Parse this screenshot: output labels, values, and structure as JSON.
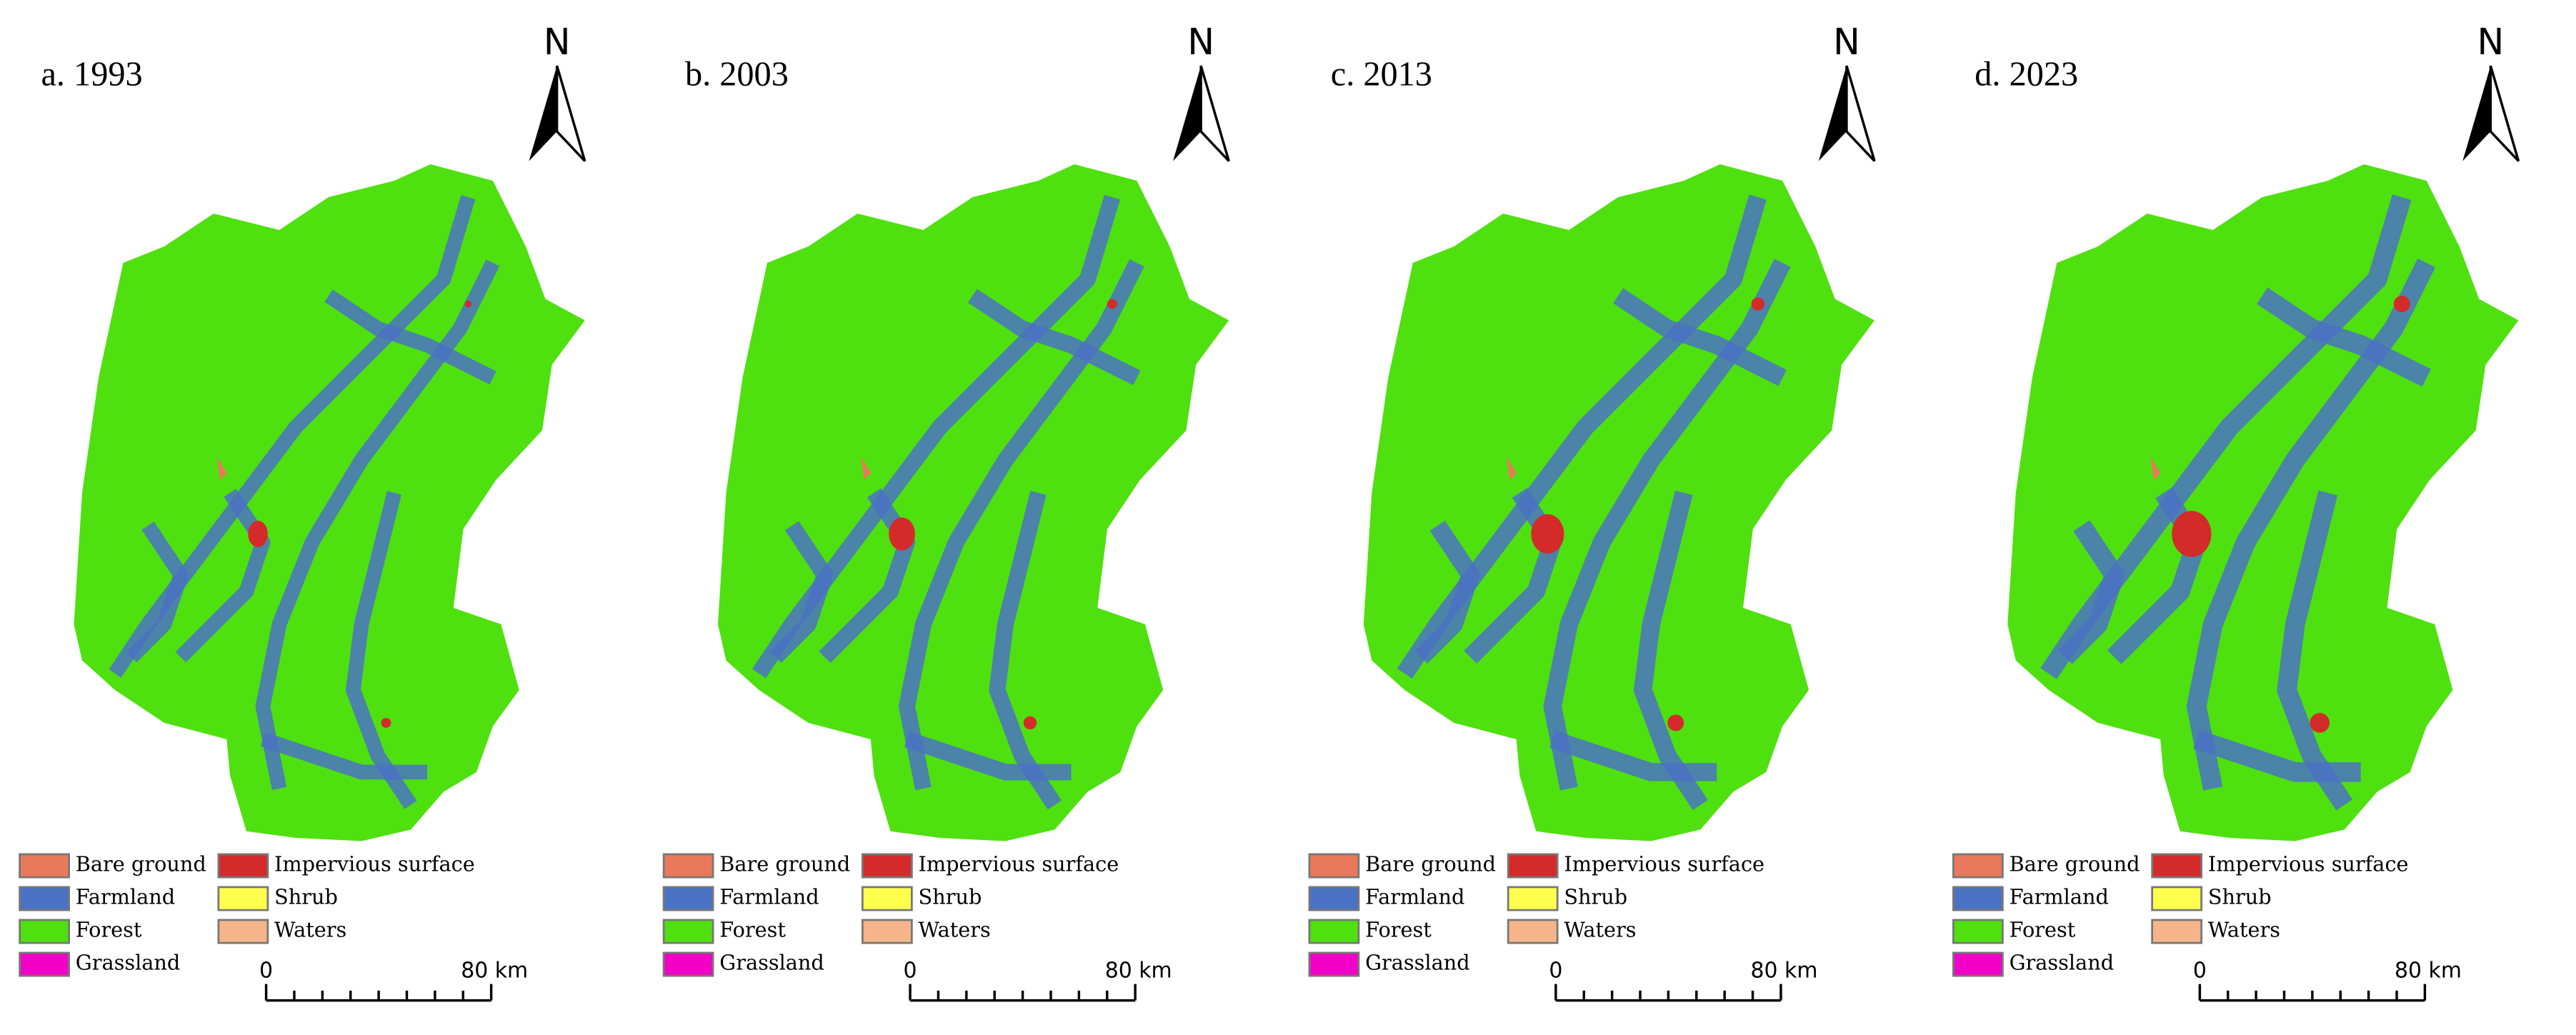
{
  "panels": [
    {
      "title": "a. 1993"
    },
    {
      "title": "b. 2003"
    },
    {
      "title": "c. 2013"
    },
    {
      "title": "d. 2023"
    }
  ],
  "north_label": "N",
  "legend": [
    {
      "label": "Bare ground",
      "color": "#e9795a"
    },
    {
      "label": "Farmland",
      "color": "#4a72c4"
    },
    {
      "label": "Forest",
      "color": "#4fe00f"
    },
    {
      "label": "Grassland",
      "color": "#f200c8"
    },
    {
      "label": "Impervious surface",
      "color": "#d42a2a"
    },
    {
      "label": "Shrub",
      "color": "#ffff4d"
    },
    {
      "label": "Waters",
      "color": "#f5b48a"
    }
  ],
  "scale_bar": {
    "labels": [
      "0",
      "80 km"
    ]
  }
}
